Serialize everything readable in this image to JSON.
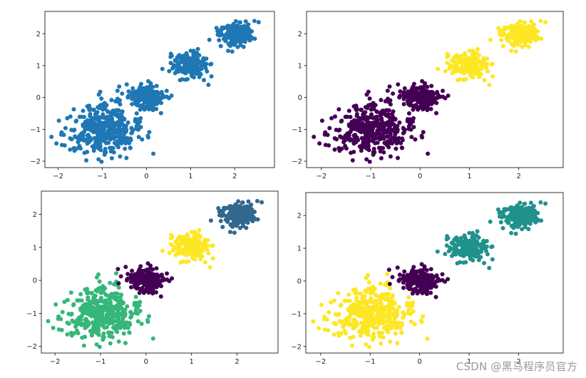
{
  "watermark": "CSDN @黑马程序员官方",
  "colors": {
    "default_blue": "#1f77b4",
    "viridis_purple": "#440154",
    "viridis_blue": "#31688e",
    "viridis_teal": "#21918c",
    "viridis_green": "#35b779",
    "viridis_yellow": "#fde725"
  },
  "chart_data": [
    {
      "type": "scatter",
      "title": "",
      "xlim": [
        -2.3,
        2.9
      ],
      "ylim": [
        -2.2,
        2.7
      ],
      "xticks": [
        -2,
        -1,
        0,
        1,
        2
      ],
      "yticks": [
        -2,
        -1,
        0,
        1,
        2
      ],
      "grid": false,
      "series": [
        {
          "center": [
            -1.0,
            -1.0
          ],
          "spread": 0.4,
          "count": 400,
          "color": "#1f77b4"
        },
        {
          "center": [
            0.0,
            0.0
          ],
          "spread": 0.2,
          "count": 200,
          "color": "#1f77b4"
        },
        {
          "center": [
            1.0,
            1.0
          ],
          "spread": 0.2,
          "count": 200,
          "color": "#1f77b4"
        },
        {
          "center": [
            2.0,
            2.0
          ],
          "spread": 0.2,
          "count": 200,
          "color": "#1f77b4"
        }
      ]
    },
    {
      "type": "scatter",
      "title": "",
      "xlim": [
        -2.3,
        2.9
      ],
      "ylim": [
        -2.2,
        2.7
      ],
      "xticks": [
        -2,
        -1,
        0,
        1,
        2
      ],
      "yticks": [
        -2,
        -1,
        0,
        1,
        2
      ],
      "grid": false,
      "series": [
        {
          "center": [
            -1.0,
            -1.0
          ],
          "spread": 0.4,
          "count": 400,
          "color": "#440154"
        },
        {
          "center": [
            0.0,
            0.0
          ],
          "spread": 0.2,
          "count": 200,
          "color": "#440154"
        },
        {
          "center": [
            1.0,
            1.0
          ],
          "spread": 0.2,
          "count": 200,
          "color": "#fde725"
        },
        {
          "center": [
            2.0,
            2.0
          ],
          "spread": 0.2,
          "count": 200,
          "color": "#fde725"
        }
      ]
    },
    {
      "type": "scatter",
      "title": "",
      "xlim": [
        -2.3,
        2.9
      ],
      "ylim": [
        -2.2,
        2.7
      ],
      "xticks": [
        -2,
        -1,
        0,
        1,
        2
      ],
      "yticks": [
        -2,
        -1,
        0,
        1,
        2
      ],
      "grid": false,
      "series": [
        {
          "center": [
            -1.0,
            -1.0
          ],
          "spread": 0.4,
          "count": 400,
          "color": "#35b779"
        },
        {
          "center": [
            0.0,
            0.0
          ],
          "spread": 0.2,
          "count": 200,
          "color": "#440154"
        },
        {
          "center": [
            1.0,
            1.0
          ],
          "spread": 0.2,
          "count": 200,
          "color": "#fde725"
        },
        {
          "center": [
            2.0,
            2.0
          ],
          "spread": 0.2,
          "count": 200,
          "color": "#31688e"
        }
      ]
    },
    {
      "type": "scatter",
      "title": "",
      "xlim": [
        -2.3,
        2.9
      ],
      "ylim": [
        -2.2,
        2.7
      ],
      "xticks": [
        -2,
        -1,
        0,
        1,
        2
      ],
      "yticks": [
        -2,
        -1,
        0,
        1,
        2
      ],
      "grid": false,
      "series": [
        {
          "center": [
            -1.0,
            -1.0
          ],
          "spread": 0.4,
          "count": 400,
          "color": "#fde725"
        },
        {
          "center": [
            0.0,
            0.0
          ],
          "spread": 0.2,
          "count": 200,
          "color": "#440154"
        },
        {
          "center": [
            1.0,
            1.0
          ],
          "spread": 0.2,
          "count": 200,
          "color": "#21918c"
        },
        {
          "center": [
            2.0,
            2.0
          ],
          "spread": 0.2,
          "count": 200,
          "color": "#21918c"
        }
      ]
    }
  ]
}
